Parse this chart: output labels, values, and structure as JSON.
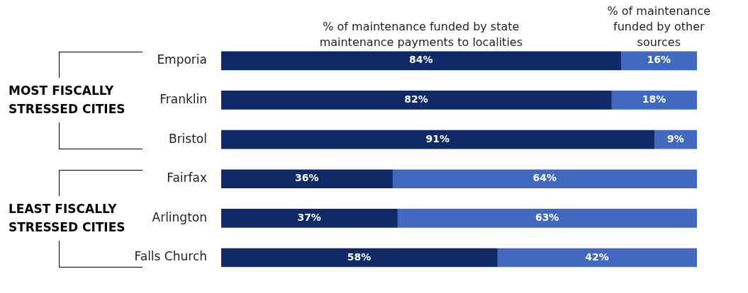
{
  "chart_data": {
    "type": "bar",
    "orientation": "horizontal",
    "stacked": true,
    "categories": [
      "Emporia",
      "Franklin",
      "Bristol",
      "Fairfax",
      "Arlington",
      "Falls Church"
    ],
    "series": [
      {
        "name": "% of maintenance funded by state maintenance payments to localities",
        "color": "#0f2a66",
        "values": [
          84,
          82,
          91,
          36,
          37,
          58
        ],
        "value_labels": [
          "84%",
          "82%",
          "91%",
          "36%",
          "37%",
          "58%"
        ]
      },
      {
        "name": "% of maintenance funded by other sources",
        "color": "#4069bf",
        "values": [
          16,
          18,
          9,
          64,
          63,
          42
        ],
        "value_labels": [
          "16%",
          "18%",
          "9%",
          "64%",
          "63%",
          "42%"
        ]
      }
    ],
    "tick_labels": "y",
    "legend": false,
    "annotations": [
      "MOST FISCALLY STRESSED CITIES",
      "LEAST FISCALLY STRESSED CITIES"
    ]
  }
}
